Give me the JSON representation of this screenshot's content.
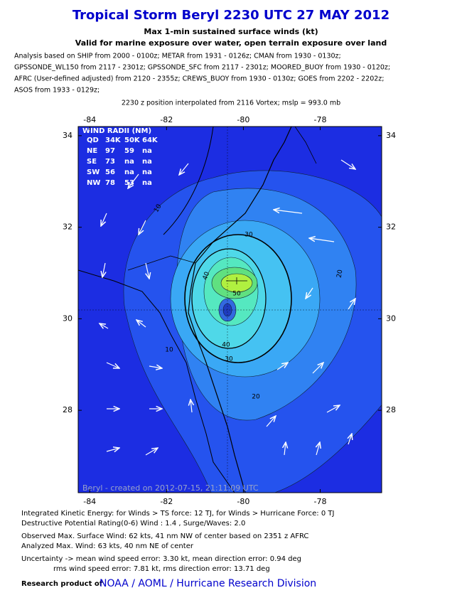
{
  "header": {
    "title": "Tropical Storm Beryl 2230 UTC 27 MAY 2012",
    "subtitle": "Max 1-min sustained surface winds (kt)",
    "subtitle2": "Valid for marine exposure over water, open terrain exposure over land"
  },
  "analysis": [
    "Analysis based on SHIP from 2000 - 0100z; METAR from 1931 - 0126z; CMAN from 1930 - 0130z;",
    "GPSSONDE_WL150 from 2117 - 2301z; GPSSONDE_SFC from 2117 - 2301z; MOORED_BUOY from 1930 - 0120z;",
    "AFRC (User-defined adjusted) from 2120 - 2355z; CREWS_BUOY from 1930 - 0130z; GOES from 2202 - 2202z;",
    "ASOS from 1933 - 0129z;"
  ],
  "position_note": "2230 z position interpolated from 2116 Vortex; mslp = 993.0 mb",
  "map": {
    "xlim": [
      -84.3,
      -76.4
    ],
    "ylim": [
      26.2,
      34.2
    ],
    "xticks": [
      -84,
      -82,
      -80,
      -78
    ],
    "yticks": [
      28,
      30,
      32,
      34
    ],
    "contour_labels": [
      10,
      30,
      20,
      40,
      50,
      40,
      30,
      10,
      20
    ],
    "wind_radii": {
      "title": "WIND RADII (NM)",
      "header": [
        "QD",
        "34K",
        "50K",
        "64K"
      ],
      "rows": [
        [
          "NE",
          "97",
          "59",
          "na"
        ],
        [
          "SE",
          "73",
          "na",
          "na"
        ],
        [
          "SW",
          "56",
          "na",
          "na"
        ],
        [
          "NW",
          "78",
          "53",
          "na"
        ]
      ]
    },
    "credit": "Beryl - created on 2012-07-15, 21:11:09 UTC"
  },
  "footer": [
    "Integrated Kinetic Energy: for Winds > TS force: 12 TJ, for Winds > Hurricane Force: 0 TJ",
    "Destructive Potential Rating(0-6)    Wind : 1.4 , Surge/Waves: 2.0",
    "Observed Max. Surface Wind: 62 kts, 41 nm NW of center based on 2351 z AFRC",
    "Analyzed Max. Wind: 63 kts, 40 nm  NE of center",
    "Uncertainty -> mean wind speed error: 3.30 kt, mean direction error: 0.94 deg",
    "rms wind speed error: 7.81 kt, rms direction error: 13.71 deg"
  ],
  "research": {
    "prefix": "Research product of",
    "org": "NOAA / AOML / Hurricane Research Division"
  }
}
